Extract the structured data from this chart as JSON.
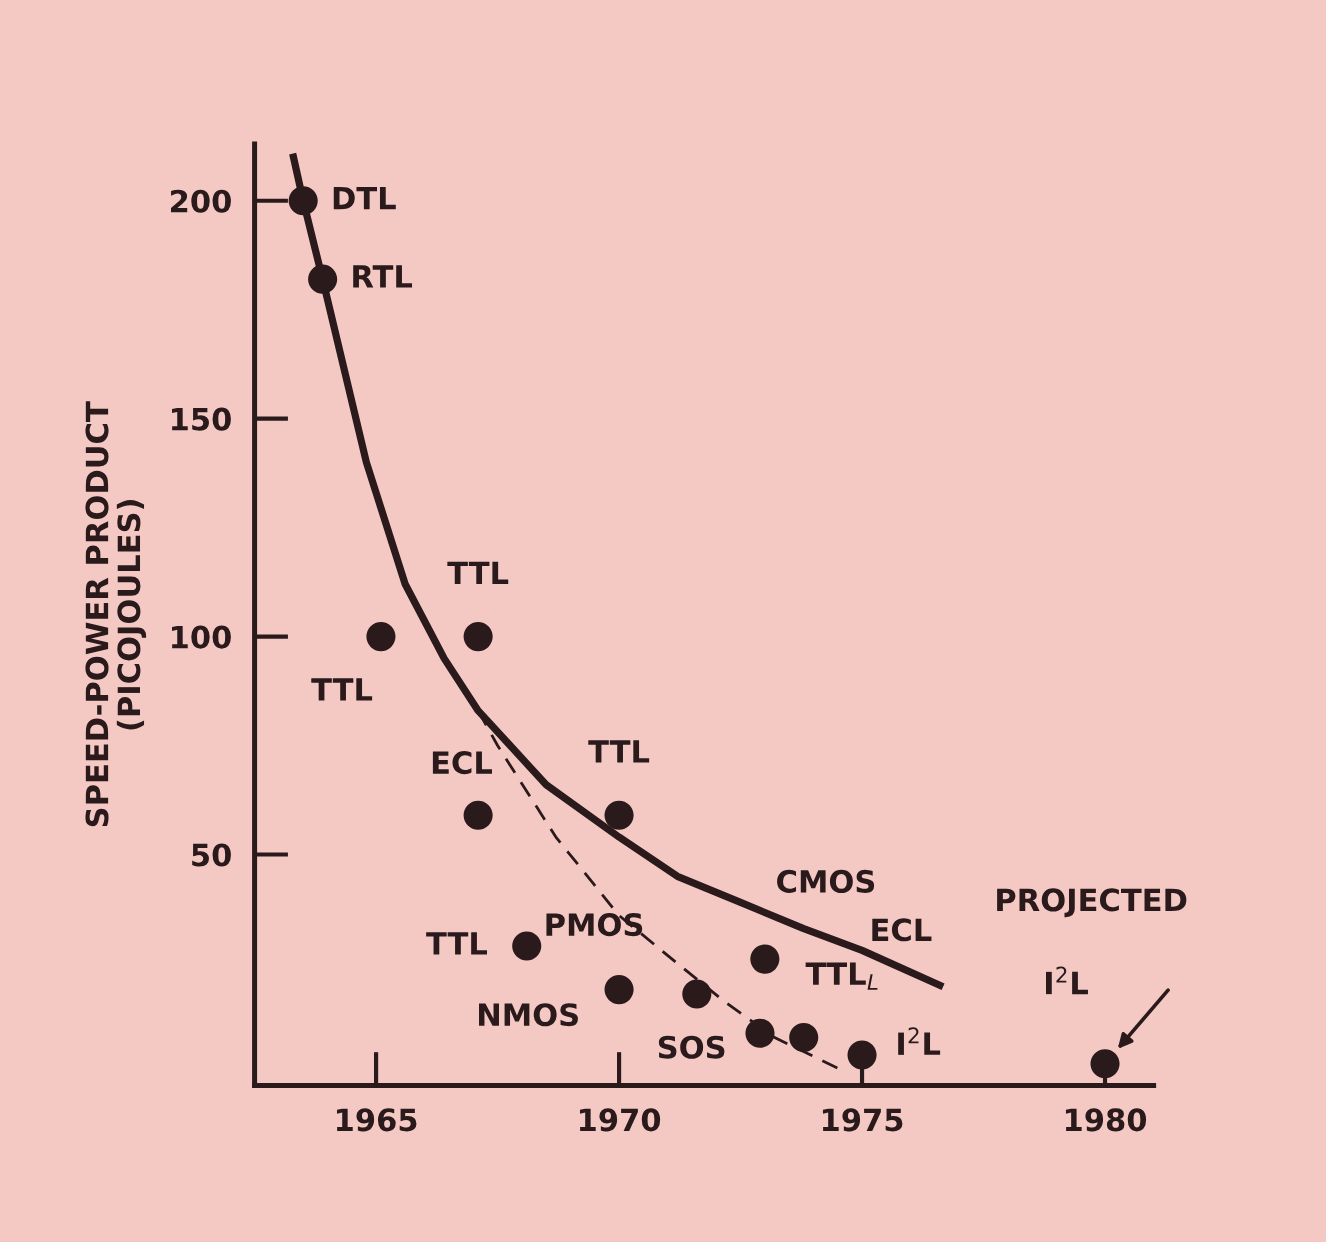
{
  "chart_data": {
    "type": "scatter",
    "ylabel": "SPEED-POWER PRODUCT\n(PICOJOULES)",
    "xlim": [
      1962.5,
      1981
    ],
    "ylim": [
      -3,
      213
    ],
    "xticks": [
      1965,
      1970,
      1975,
      1980
    ],
    "yticks": [
      50,
      100,
      150,
      200
    ],
    "series": [
      {
        "marker": "circle",
        "color": "#2a1a1c",
        "x": [
          1963.5,
          1963.9,
          1965.1,
          1967.1,
          1967.1,
          1970,
          1968.1,
          1970,
          1971.6,
          1973,
          1972.9,
          1973.8,
          1975,
          1980
        ],
        "values": [
          200,
          182,
          100,
          100,
          59,
          59,
          29,
          19,
          18,
          26,
          9,
          8,
          4,
          2
        ]
      },
      {
        "type": "line",
        "color": "#2a1a1c",
        "line_style": "solid",
        "x": [
          1963.3,
          1963.5,
          1963.9,
          1964.8,
          1965.6,
          1966.4,
          1967.1,
          1968.5,
          1970,
          1971.2,
          1972.5,
          1973.8,
          1975,
          1976.6
        ],
        "values": [
          210,
          200,
          182,
          140,
          112,
          95,
          83,
          66,
          54,
          45,
          39,
          33,
          28,
          20
        ]
      },
      {
        "type": "line",
        "color": "#2a1a1c",
        "line_style": "dashed",
        "x": [
          1967.1,
          1967.5,
          1968.7,
          1970,
          1971.2,
          1972.2,
          1973.2,
          1974.5
        ],
        "values": [
          83,
          75,
          54,
          36,
          25,
          16,
          8,
          1
        ]
      }
    ],
    "annotations": [
      {
        "text": "DTL",
        "x": 1963.5,
        "y": 200
      },
      {
        "text": "RTL",
        "x": 1963.9,
        "y": 182
      },
      {
        "text": "TTL",
        "x": 1965.1,
        "y": 100
      },
      {
        "text": "TTL",
        "x": 1967.1,
        "y": 100
      },
      {
        "text": "ECL",
        "x": 1967.1,
        "y": 59
      },
      {
        "text": "TTL",
        "x": 1970,
        "y": 59
      },
      {
        "text": "TTL",
        "x": 1968.1,
        "y": 29
      },
      {
        "text": "NMOS",
        "x": 1970,
        "y": 19
      },
      {
        "text": "PMOS",
        "x": 1971.6,
        "y": 18
      },
      {
        "text": "CMOS",
        "x": 1973,
        "y": 26
      },
      {
        "text": "SOS",
        "x": 1972.9,
        "y": 9
      },
      {
        "text": "TTL$_{L}$",
        "x": 1973.8,
        "y": 8
      },
      {
        "text": "I$^{2}$L",
        "x": 1975,
        "y": 4
      },
      {
        "text": "ECL",
        "x": 1976.6,
        "y": 20
      },
      {
        "text": "I$^{2}$L",
        "x": 1980,
        "y": 2
      },
      "PROJECTED"
    ]
  }
}
